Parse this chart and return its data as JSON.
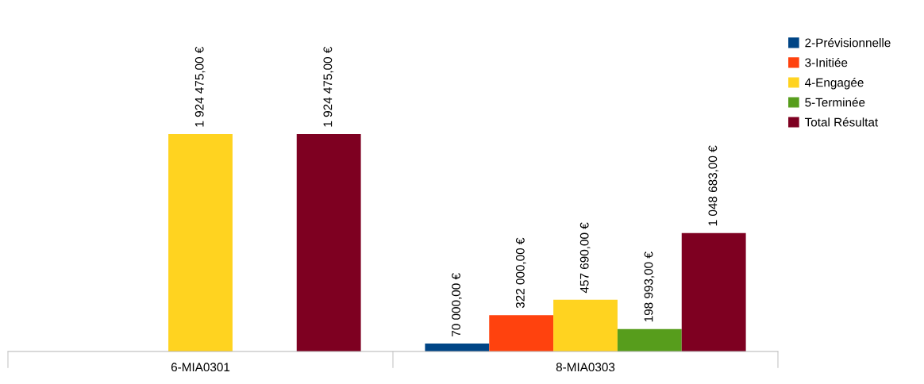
{
  "chart_data": {
    "type": "bar",
    "categories": [
      "6-MIA0301",
      "8-MIA0303"
    ],
    "series": [
      {
        "name": "2-Prévisionnelle",
        "color": "#004586",
        "values": [
          null,
          70000
        ],
        "value_labels": [
          null,
          "70 000,00 €"
        ]
      },
      {
        "name": "3-Initiée",
        "color": "#ff420e",
        "values": [
          null,
          322000
        ],
        "value_labels": [
          null,
          "322 000,00 €"
        ]
      },
      {
        "name": "4-Engagée",
        "color": "#ffd320",
        "values": [
          1924475,
          457690
        ],
        "value_labels": [
          "1 924 475,00 €",
          "457 690,00 €"
        ]
      },
      {
        "name": "5-Terminée",
        "color": "#579d1c",
        "values": [
          null,
          198993
        ],
        "value_labels": [
          null,
          "198 993,00 €"
        ]
      },
      {
        "name": "Total Résultat",
        "color": "#7e0021",
        "values": [
          1924475,
          1048683
        ],
        "value_labels": [
          "1 924 475,00 €",
          "1 048 683,00 €"
        ]
      }
    ],
    "legend": "right",
    "grid": false
  }
}
